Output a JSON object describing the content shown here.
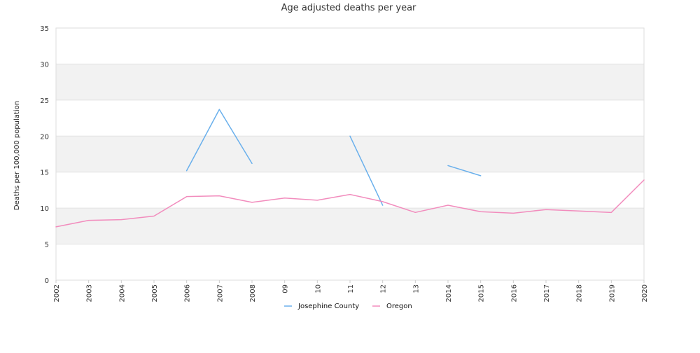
{
  "chart_data": {
    "type": "line",
    "title": "Age adjusted deaths per year",
    "xlabel": "",
    "ylabel": "Deaths per 100,000 population",
    "ylim": [
      0,
      35
    ],
    "yticks": [
      "0",
      "5",
      "10",
      "15",
      "20",
      "25",
      "30",
      "35"
    ],
    "categories": [
      "2002",
      "2003",
      "2004",
      "2005",
      "2006",
      "2007",
      "2008",
      "09",
      "10",
      "11",
      "12",
      "13",
      "2014",
      "2015",
      "2016",
      "2017",
      "2018",
      "2019",
      "2020"
    ],
    "grid": true,
    "legend_position": "bottom",
    "series": [
      {
        "name": "Josephine County",
        "color": "#6ab0ec",
        "values": [
          null,
          null,
          null,
          null,
          15.2,
          23.7,
          16.2,
          null,
          null,
          20.0,
          10.4,
          null,
          15.9,
          14.5,
          null,
          null,
          null,
          null,
          null
        ]
      },
      {
        "name": "Oregon",
        "color": "#f28cbd",
        "values": [
          7.4,
          8.3,
          8.4,
          8.9,
          11.6,
          11.7,
          10.8,
          11.4,
          11.1,
          11.9,
          10.9,
          9.4,
          10.4,
          9.5,
          9.3,
          9.8,
          9.6,
          9.4,
          13.9
        ]
      }
    ]
  }
}
